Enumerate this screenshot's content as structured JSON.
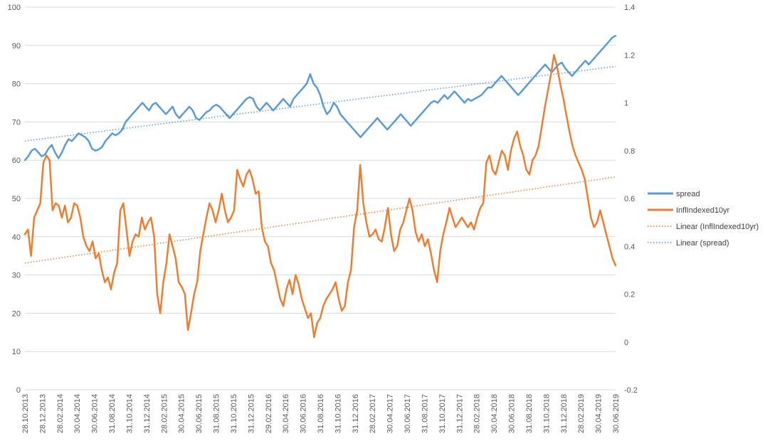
{
  "chart_data": {
    "type": "line",
    "title": "",
    "xlabel": "",
    "ylabel": "",
    "y_left_range": [
      0,
      100
    ],
    "y_left_ticks": [
      "0",
      "10",
      "20",
      "30",
      "40",
      "50",
      "60",
      "70",
      "80",
      "90",
      "100"
    ],
    "y_right_range": [
      -0.2,
      1.4
    ],
    "y_right_ticks": [
      "-0.2",
      "0",
      "0.2",
      "0.4",
      "0.6",
      "0.8",
      "1",
      "1.2",
      "1.4"
    ],
    "x_tick_labels": [
      "28.10.2013",
      "28.12.2013",
      "28.02.2014",
      "30.04.2014",
      "30.06.2014",
      "31.08.2014",
      "31.10.2014",
      "31.12.2014",
      "28.02.2015",
      "30.04.2015",
      "30.06.2015",
      "31.08.2015",
      "31.10.2015",
      "31.12.2015",
      "29.02.2016",
      "30.04.2016",
      "30.06.2016",
      "31.08.2016",
      "31.10.2016",
      "31.12.2016",
      "28.02.2017",
      "30.04.2017",
      "30.06.2017",
      "31.08.2017",
      "31.10.2017",
      "31.12.2017",
      "28.02.2018",
      "30.04.2018",
      "30.06.2018",
      "31.08.2018",
      "31.10.2018",
      "31.12.2018",
      "28.02.2019",
      "30.04.2019",
      "30.06.2019"
    ],
    "grid": true,
    "legend_position": "right",
    "series": [
      {
        "name": "spread",
        "axis": "left",
        "color": "#5b9bd5",
        "style": "solid",
        "y": [
          60,
          61,
          62.5,
          63,
          62,
          61,
          61.5,
          63,
          64,
          62,
          60.5,
          62,
          64,
          65.5,
          65,
          66,
          67,
          66.5,
          66,
          65,
          63,
          62.5,
          62.8,
          63.5,
          65,
          66,
          67,
          66.5,
          67,
          68,
          70,
          71,
          72,
          73,
          74,
          75,
          74,
          73,
          74.5,
          75,
          74,
          73,
          72,
          73,
          74,
          72,
          71,
          72,
          73,
          74,
          73,
          71,
          70.5,
          71.5,
          72.5,
          73,
          74,
          74.5,
          74,
          73,
          72,
          71,
          72,
          73,
          74,
          75,
          76,
          76.5,
          76,
          74,
          73,
          74,
          75,
          74,
          73,
          74,
          75,
          76,
          75,
          74,
          76,
          77,
          78,
          79,
          80,
          82.5,
          80,
          79,
          77,
          74,
          72,
          73,
          75,
          74,
          72,
          71,
          70,
          69,
          68,
          67,
          66,
          67,
          68,
          69,
          70,
          71,
          70,
          69,
          68,
          69,
          70,
          71,
          72,
          71,
          70,
          69,
          70,
          71,
          72,
          73,
          74,
          75,
          75.5,
          75,
          76,
          77,
          76,
          77,
          78,
          77,
          76,
          75,
          76,
          75.5,
          76,
          76.5,
          77,
          78,
          79,
          79,
          80,
          81,
          82,
          81,
          80,
          79,
          78,
          77,
          78,
          79,
          80,
          81,
          82,
          83,
          84,
          85,
          84,
          83,
          84,
          85,
          85.5,
          84,
          83,
          82,
          83,
          84,
          85,
          86,
          85,
          86,
          87,
          88,
          89,
          90,
          91,
          92,
          92.5
        ],
        "trend_name": "Linear (spread)",
        "trend_color": "#5b9bd5",
        "trend_start": 65,
        "trend_end": 84.5
      },
      {
        "name": "InflIndexed10yr",
        "axis": "right",
        "color": "#ed7d31",
        "style": "solid",
        "y": [
          0.45,
          0.47,
          0.36,
          0.52,
          0.55,
          0.58,
          0.75,
          0.78,
          0.76,
          0.55,
          0.58,
          0.57,
          0.52,
          0.57,
          0.5,
          0.52,
          0.58,
          0.57,
          0.52,
          0.44,
          0.4,
          0.38,
          0.42,
          0.35,
          0.37,
          0.3,
          0.25,
          0.27,
          0.22,
          0.29,
          0.33,
          0.55,
          0.58,
          0.47,
          0.36,
          0.42,
          0.45,
          0.44,
          0.52,
          0.47,
          0.5,
          0.52,
          0.44,
          0.2,
          0.12,
          0.25,
          0.33,
          0.45,
          0.4,
          0.35,
          0.25,
          0.23,
          0.2,
          0.05,
          0.12,
          0.2,
          0.25,
          0.38,
          0.45,
          0.52,
          0.58,
          0.55,
          0.5,
          0.55,
          0.62,
          0.55,
          0.5,
          0.52,
          0.55,
          0.72,
          0.68,
          0.65,
          0.7,
          0.72,
          0.68,
          0.62,
          0.63,
          0.48,
          0.42,
          0.4,
          0.33,
          0.3,
          0.24,
          0.18,
          0.15,
          0.22,
          0.26,
          0.2,
          0.28,
          0.24,
          0.18,
          0.14,
          0.1,
          0.12,
          0.02,
          0.08,
          0.1,
          0.15,
          0.18,
          0.2,
          0.22,
          0.25,
          0.18,
          0.13,
          0.15,
          0.25,
          0.3,
          0.48,
          0.55,
          0.74,
          0.58,
          0.5,
          0.44,
          0.45,
          0.47,
          0.43,
          0.42,
          0.48,
          0.56,
          0.45,
          0.38,
          0.4,
          0.47,
          0.5,
          0.55,
          0.6,
          0.55,
          0.46,
          0.42,
          0.45,
          0.4,
          0.43,
          0.37,
          0.3,
          0.25,
          0.38,
          0.45,
          0.5,
          0.56,
          0.52,
          0.48,
          0.5,
          0.52,
          0.5,
          0.48,
          0.5,
          0.47,
          0.52,
          0.56,
          0.58,
          0.75,
          0.78,
          0.72,
          0.7,
          0.75,
          0.8,
          0.78,
          0.72,
          0.8,
          0.85,
          0.88,
          0.82,
          0.78,
          0.72,
          0.7,
          0.76,
          0.78,
          0.82,
          0.9,
          0.98,
          1.05,
          1.12,
          1.2,
          1.15,
          1.08,
          1.02,
          0.95,
          0.88,
          0.82,
          0.78,
          0.75,
          0.72,
          0.68,
          0.6,
          0.52,
          0.48,
          0.5,
          0.55,
          0.5,
          0.45,
          0.4,
          0.35,
          0.32
        ],
        "trend_name": "Linear (InflIndexed10yr)",
        "trend_color": "#ed7d31",
        "trend_start": 0.33,
        "trend_end": 0.69
      }
    ],
    "legend": [
      {
        "label": "spread",
        "color": "#5b9bd5",
        "style": "solid"
      },
      {
        "label": "InflIndexed10yr",
        "color": "#ed7d31",
        "style": "solid"
      },
      {
        "label": "Linear (InflIndexed10yr)",
        "color": "#ed7d31",
        "style": "dotted"
      },
      {
        "label": "Linear (spread)",
        "color": "#5b9bd5",
        "style": "dotted"
      }
    ]
  }
}
